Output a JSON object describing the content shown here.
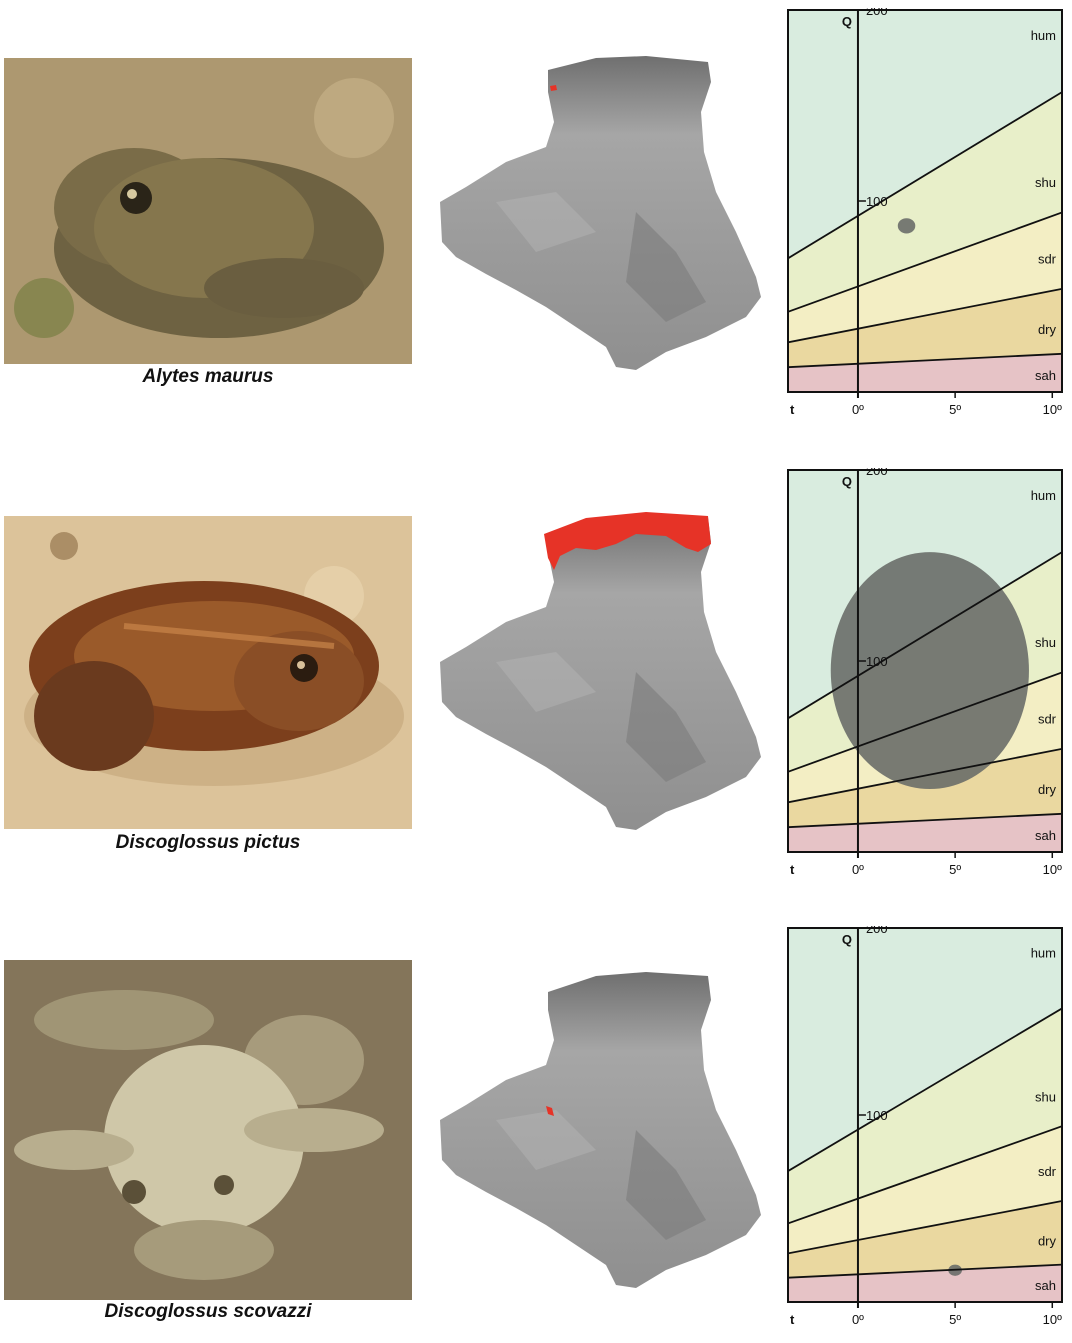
{
  "species": [
    {
      "name": "Alytes maurus",
      "photo_palette": {
        "ground": "#b9a27a",
        "body": "#7a6a45",
        "accent": "#9c7a4c"
      },
      "map_highlight": "tiny-northwest"
    },
    {
      "name": "Discoglossus pictus",
      "photo_palette": {
        "ground": "#dcc39a",
        "body": "#8a4a22",
        "accent": "#b86a30"
      },
      "map_highlight": "northern-coast"
    },
    {
      "name": "Discoglossus scovazzi",
      "photo_palette": {
        "ground": "#8f7e62",
        "body": "#cfc7a8",
        "accent": "#a89d7c"
      },
      "map_highlight": "small-west"
    }
  ],
  "colors": {
    "hum": "#d9ecdf",
    "shu": "#e8efc9",
    "sdr": "#f3eec4",
    "dry": "#ead8a0",
    "sah": "#e6c3c6",
    "map_gray": "#9b9b9b",
    "highlight": "#e63327",
    "ellipse": "#666a66"
  },
  "chart_data": [
    {
      "type": "scatter",
      "xlabel": "t",
      "ylabel": "Q",
      "x_ticks": [
        "0º",
        "5º",
        "10º"
      ],
      "y_ticks": [
        "100",
        "200"
      ],
      "xlim": [
        -3.6,
        10.5
      ],
      "ylim": [
        0,
        200
      ],
      "zones": [
        "hum",
        "shu",
        "sdr",
        "dry",
        "sah"
      ],
      "boundaries": [
        {
          "between": "hum-shu",
          "at_x_min": 70,
          "at_x_max": 157
        },
        {
          "between": "shu-sdr",
          "at_x_min": 42,
          "at_x_max": 94
        },
        {
          "between": "sdr-dry",
          "at_x_min": 26,
          "at_x_max": 54
        },
        {
          "between": "dry-sah",
          "at_x_min": 13,
          "at_x_max": 20
        }
      ],
      "niche": {
        "cx": 2.5,
        "cy": 87,
        "rx": 0.45,
        "ry": 4
      }
    },
    {
      "type": "scatter",
      "xlabel": "t",
      "ylabel": "Q",
      "x_ticks": [
        "0º",
        "5º",
        "10º"
      ],
      "y_ticks": [
        "100",
        "200"
      ],
      "xlim": [
        -3.6,
        10.5
      ],
      "ylim": [
        0,
        200
      ],
      "zones": [
        "hum",
        "shu",
        "sdr",
        "dry",
        "sah"
      ],
      "boundaries": [
        {
          "between": "hum-shu",
          "at_x_min": 70,
          "at_x_max": 157
        },
        {
          "between": "shu-sdr",
          "at_x_min": 42,
          "at_x_max": 94
        },
        {
          "between": "sdr-dry",
          "at_x_min": 26,
          "at_x_max": 54
        },
        {
          "between": "dry-sah",
          "at_x_min": 13,
          "at_x_max": 20
        }
      ],
      "niche": {
        "cx": 3.7,
        "cy": 95,
        "rx": 5.1,
        "ry": 62
      }
    },
    {
      "type": "scatter",
      "xlabel": "t",
      "ylabel": "Q",
      "x_ticks": [
        "0º",
        "5º",
        "10º"
      ],
      "y_ticks": [
        "100",
        "200"
      ],
      "xlim": [
        -3.6,
        10.5
      ],
      "ylim": [
        0,
        200
      ],
      "zones": [
        "hum",
        "shu",
        "sdr",
        "dry",
        "sah"
      ],
      "boundaries": [
        {
          "between": "hum-shu",
          "at_x_min": 70,
          "at_x_max": 157
        },
        {
          "between": "shu-sdr",
          "at_x_min": 42,
          "at_x_max": 94
        },
        {
          "between": "sdr-dry",
          "at_x_min": 26,
          "at_x_max": 54
        },
        {
          "between": "dry-sah",
          "at_x_min": 13,
          "at_x_max": 20
        }
      ],
      "niche": {
        "cx": 5.0,
        "cy": 17,
        "rx": 0.35,
        "ry": 3
      }
    }
  ]
}
